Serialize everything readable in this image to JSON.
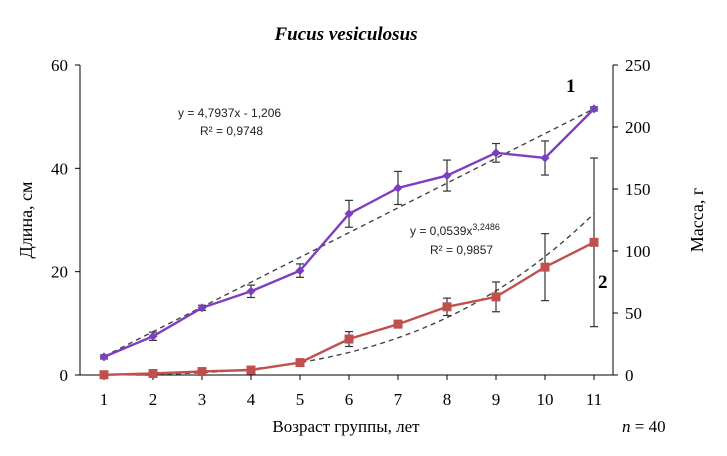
{
  "chart_data": {
    "type": "line",
    "title": "Fucus vesiculosus",
    "xlabel": "Возраст группы, лет",
    "ylabel_left": "Длина, см",
    "ylabel_right": "Масса, г",
    "note_prefix": "n",
    "note_value": " = 40",
    "xlim": [
      1,
      11
    ],
    "ylim_left": [
      0,
      60
    ],
    "ylim_right": [
      0,
      250
    ],
    "x_ticks": [
      "1",
      "2",
      "3",
      "4",
      "5",
      "6",
      "7",
      "8",
      "9",
      "10",
      "11"
    ],
    "y_left_ticks": [
      "0",
      "20",
      "40",
      "60"
    ],
    "y_right_ticks": [
      "0",
      "50",
      "100",
      "150",
      "200",
      "250"
    ],
    "series": [
      {
        "name": "1",
        "axis": "left",
        "color": "#7B3FBF",
        "marker": "diamond",
        "x": [
          1,
          2,
          3,
          4,
          5,
          6,
          7,
          8,
          9,
          10,
          11
        ],
        "y": [
          3.5,
          7.5,
          13,
          16.2,
          20.2,
          31.2,
          36.2,
          38.6,
          43,
          42,
          51.5
        ],
        "err": [
          0.4,
          0.8,
          0.5,
          1.2,
          1.3,
          2.6,
          3.2,
          3.0,
          1.8,
          3.3,
          0.4
        ]
      },
      {
        "name": "2",
        "axis": "right",
        "color": "#C0504D",
        "marker": "square",
        "x": [
          1,
          2,
          3,
          4,
          5,
          6,
          7,
          8,
          9,
          10,
          11
        ],
        "y": [
          0.2,
          1.2,
          2.8,
          4,
          10,
          29,
          41,
          55,
          63,
          87,
          107
        ],
        "err": [
          0.3,
          0.4,
          0.6,
          1,
          2,
          6,
          3,
          7,
          12,
          27,
          68
        ]
      }
    ],
    "trendlines": [
      {
        "series": "1",
        "axis": "left",
        "kind": "linear",
        "a": 4.7937,
        "b": -1.206,
        "color": "#444444"
      },
      {
        "series": "2",
        "axis": "right",
        "kind": "power",
        "a": 0.0539,
        "b": 3.2486,
        "color": "#444444"
      }
    ],
    "annotations": {
      "eq1_line1": "y = 4,7937x - 1,206",
      "eq1_line2": "R² = 0,9748",
      "eq2_base": "y = 0,0539x",
      "eq2_exp": "3,2486",
      "eq2_line2": "R² = 0,9857",
      "label1": "1",
      "label2": "2"
    }
  }
}
